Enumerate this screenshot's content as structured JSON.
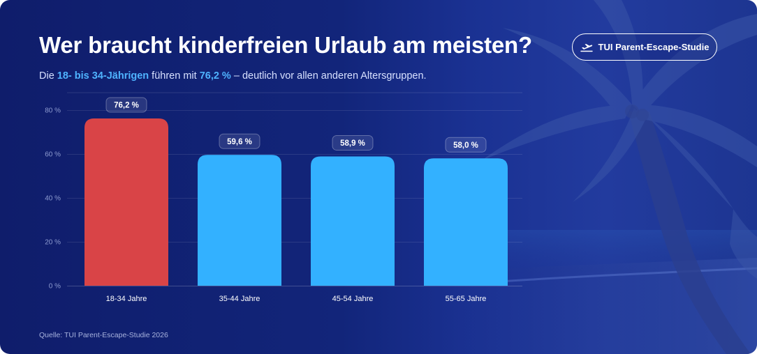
{
  "header": {
    "title": "Wer braucht kinderfreien Urlaub am meisten?",
    "subtitle_pre": "Die ",
    "subtitle_hl1": "18- bis 34-Jährigen",
    "subtitle_mid": " führen mit ",
    "subtitle_hl2": "76,2 %",
    "subtitle_post": " – deutlich vor allen anderen Altersgruppen.",
    "badge_label": "TUI Parent-Escape-Studie",
    "badge_icon": "airplane-takeoff-icon"
  },
  "footer": {
    "source": "Quelle: TUI Parent-Escape-Studie 2026"
  },
  "colors": {
    "highlight_bar": "#d94447",
    "bar": "#33b1ff",
    "accent_text": "#4fb3ff"
  },
  "chart_data": {
    "type": "bar",
    "categories": [
      "18-34 Jahre",
      "35-44 Jahre",
      "45-54 Jahre",
      "55-65 Jahre"
    ],
    "values": [
      76.2,
      59.6,
      58.9,
      58.0
    ],
    "value_labels": [
      "76,2 %",
      "59,6 %",
      "58,9 %",
      "58,0 %"
    ],
    "highlight_index": 0,
    "ylim": [
      0,
      80
    ],
    "yticks": [
      0,
      20,
      40,
      60,
      80
    ],
    "ytick_labels": [
      "0 %",
      "20 %",
      "40 %",
      "60 %",
      "80 %"
    ],
    "grid": true,
    "title": "Wer braucht kinderfreien Urlaub am meisten?",
    "xlabel": "",
    "ylabel": ""
  }
}
